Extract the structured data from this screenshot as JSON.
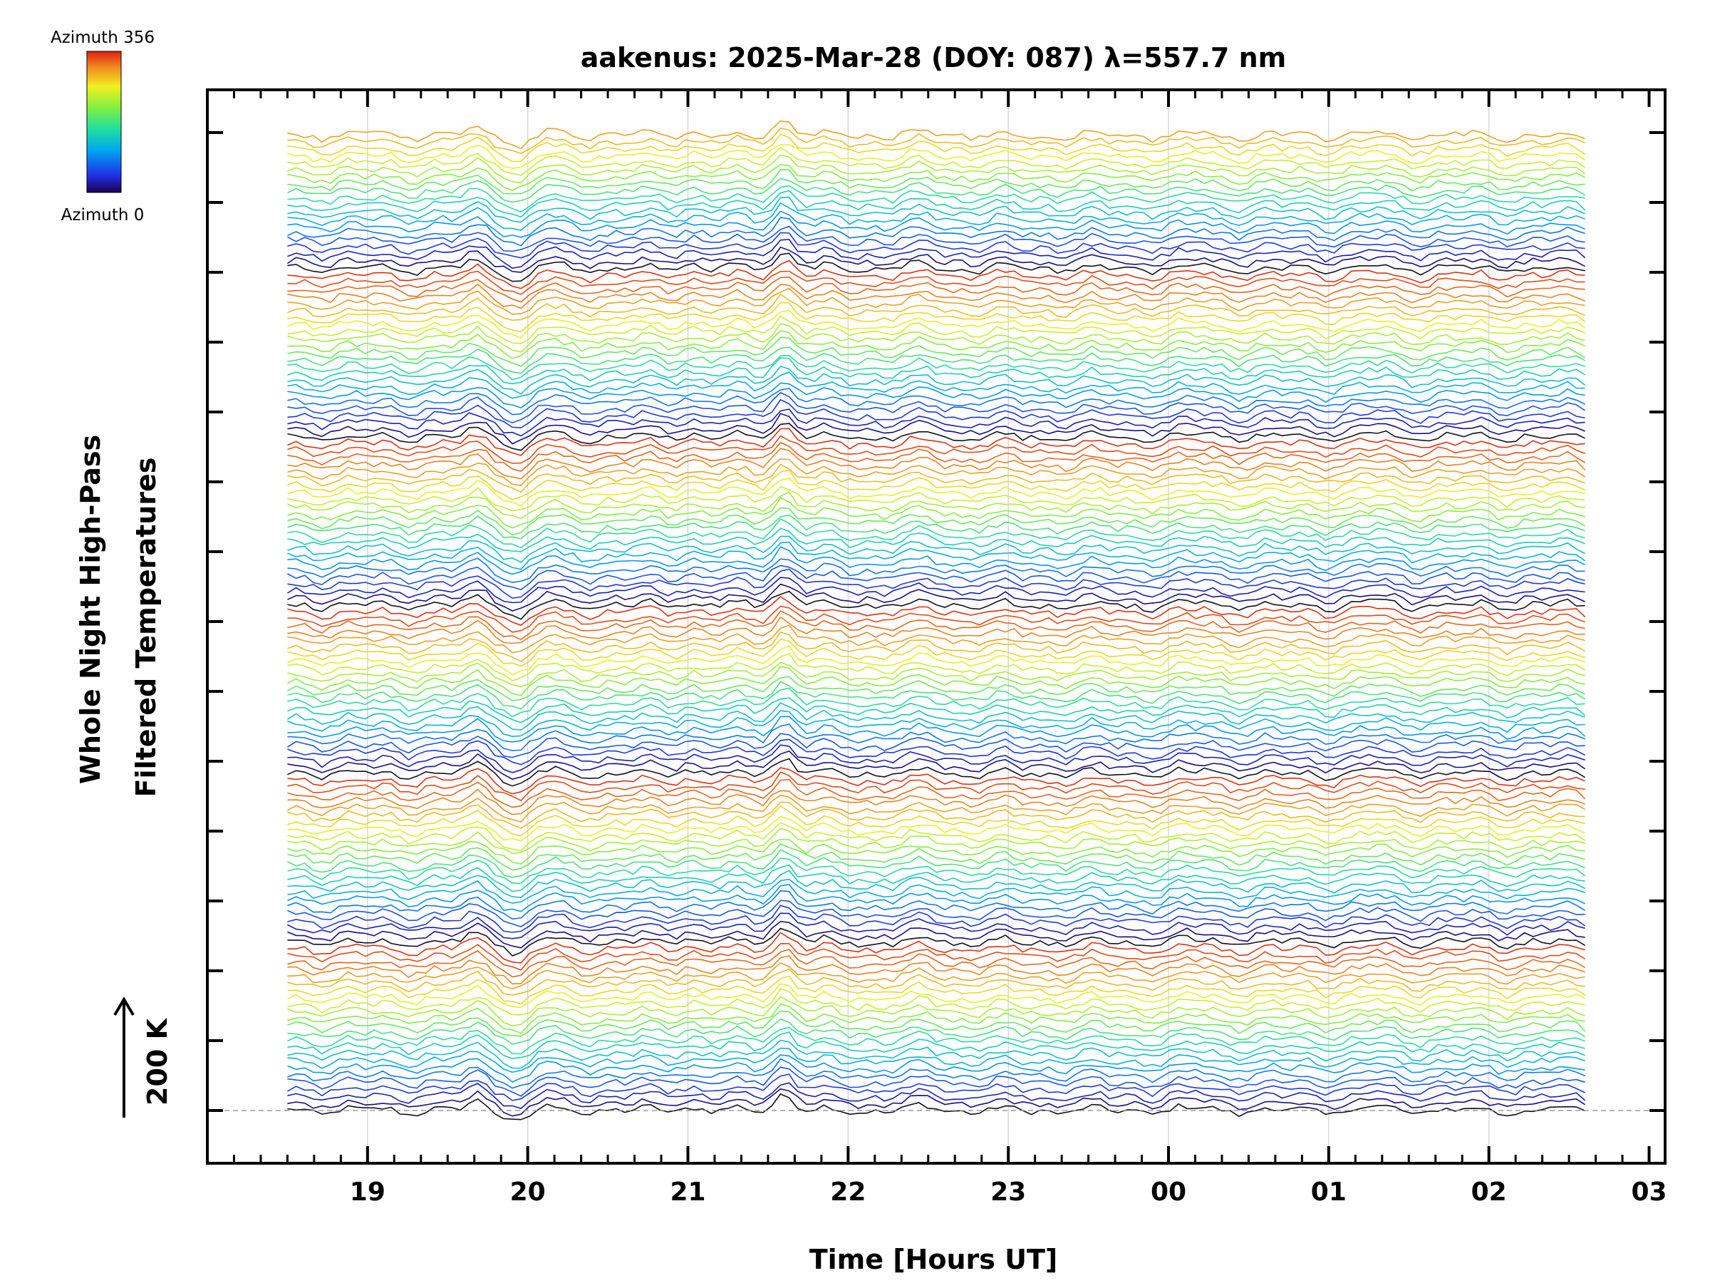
{
  "chart_data": {
    "type": "line",
    "title": "aakenus: 2025-Mar-28 (DOY: 087) λ=557.7 nm",
    "xlabel": "Time [Hours UT]",
    "ylabel_line1": "Whole Night High-Pass",
    "ylabel_line2": "Filtered Temperatures",
    "scale_label": "200 K",
    "colorbar": {
      "top_label": "Azimuth 356",
      "bottom_label": "Azimuth 0",
      "colormap": [
        "#5a0087",
        "#2030e6",
        "#00a8f0",
        "#20e0a0",
        "#80f040",
        "#f0f020",
        "#f09020",
        "#e02010"
      ]
    },
    "x_ticks": [
      "19",
      "20",
      "21",
      "22",
      "23",
      "00",
      "01",
      "02",
      "03"
    ],
    "x_range_hours": [
      18.0,
      27.1
    ],
    "data_x_range_hours": [
      18.5,
      26.6
    ],
    "stacked_traces": 140,
    "azimuth_range": [
      0,
      356
    ],
    "common_features_hours": [
      {
        "t": 19.7,
        "amp": 1.0
      },
      {
        "t": 19.95,
        "amp": -1.6
      },
      {
        "t": 20.1,
        "amp": 0.5
      },
      {
        "t": 21.0,
        "amp": 0.5
      },
      {
        "t": 21.6,
        "amp": 2.0
      },
      {
        "t": 22.5,
        "amp": 0.5
      },
      {
        "t": 24.2,
        "amp": 0.4
      },
      {
        "t": 25.3,
        "amp": 0.4
      }
    ],
    "grid": true,
    "legend": "none"
  }
}
